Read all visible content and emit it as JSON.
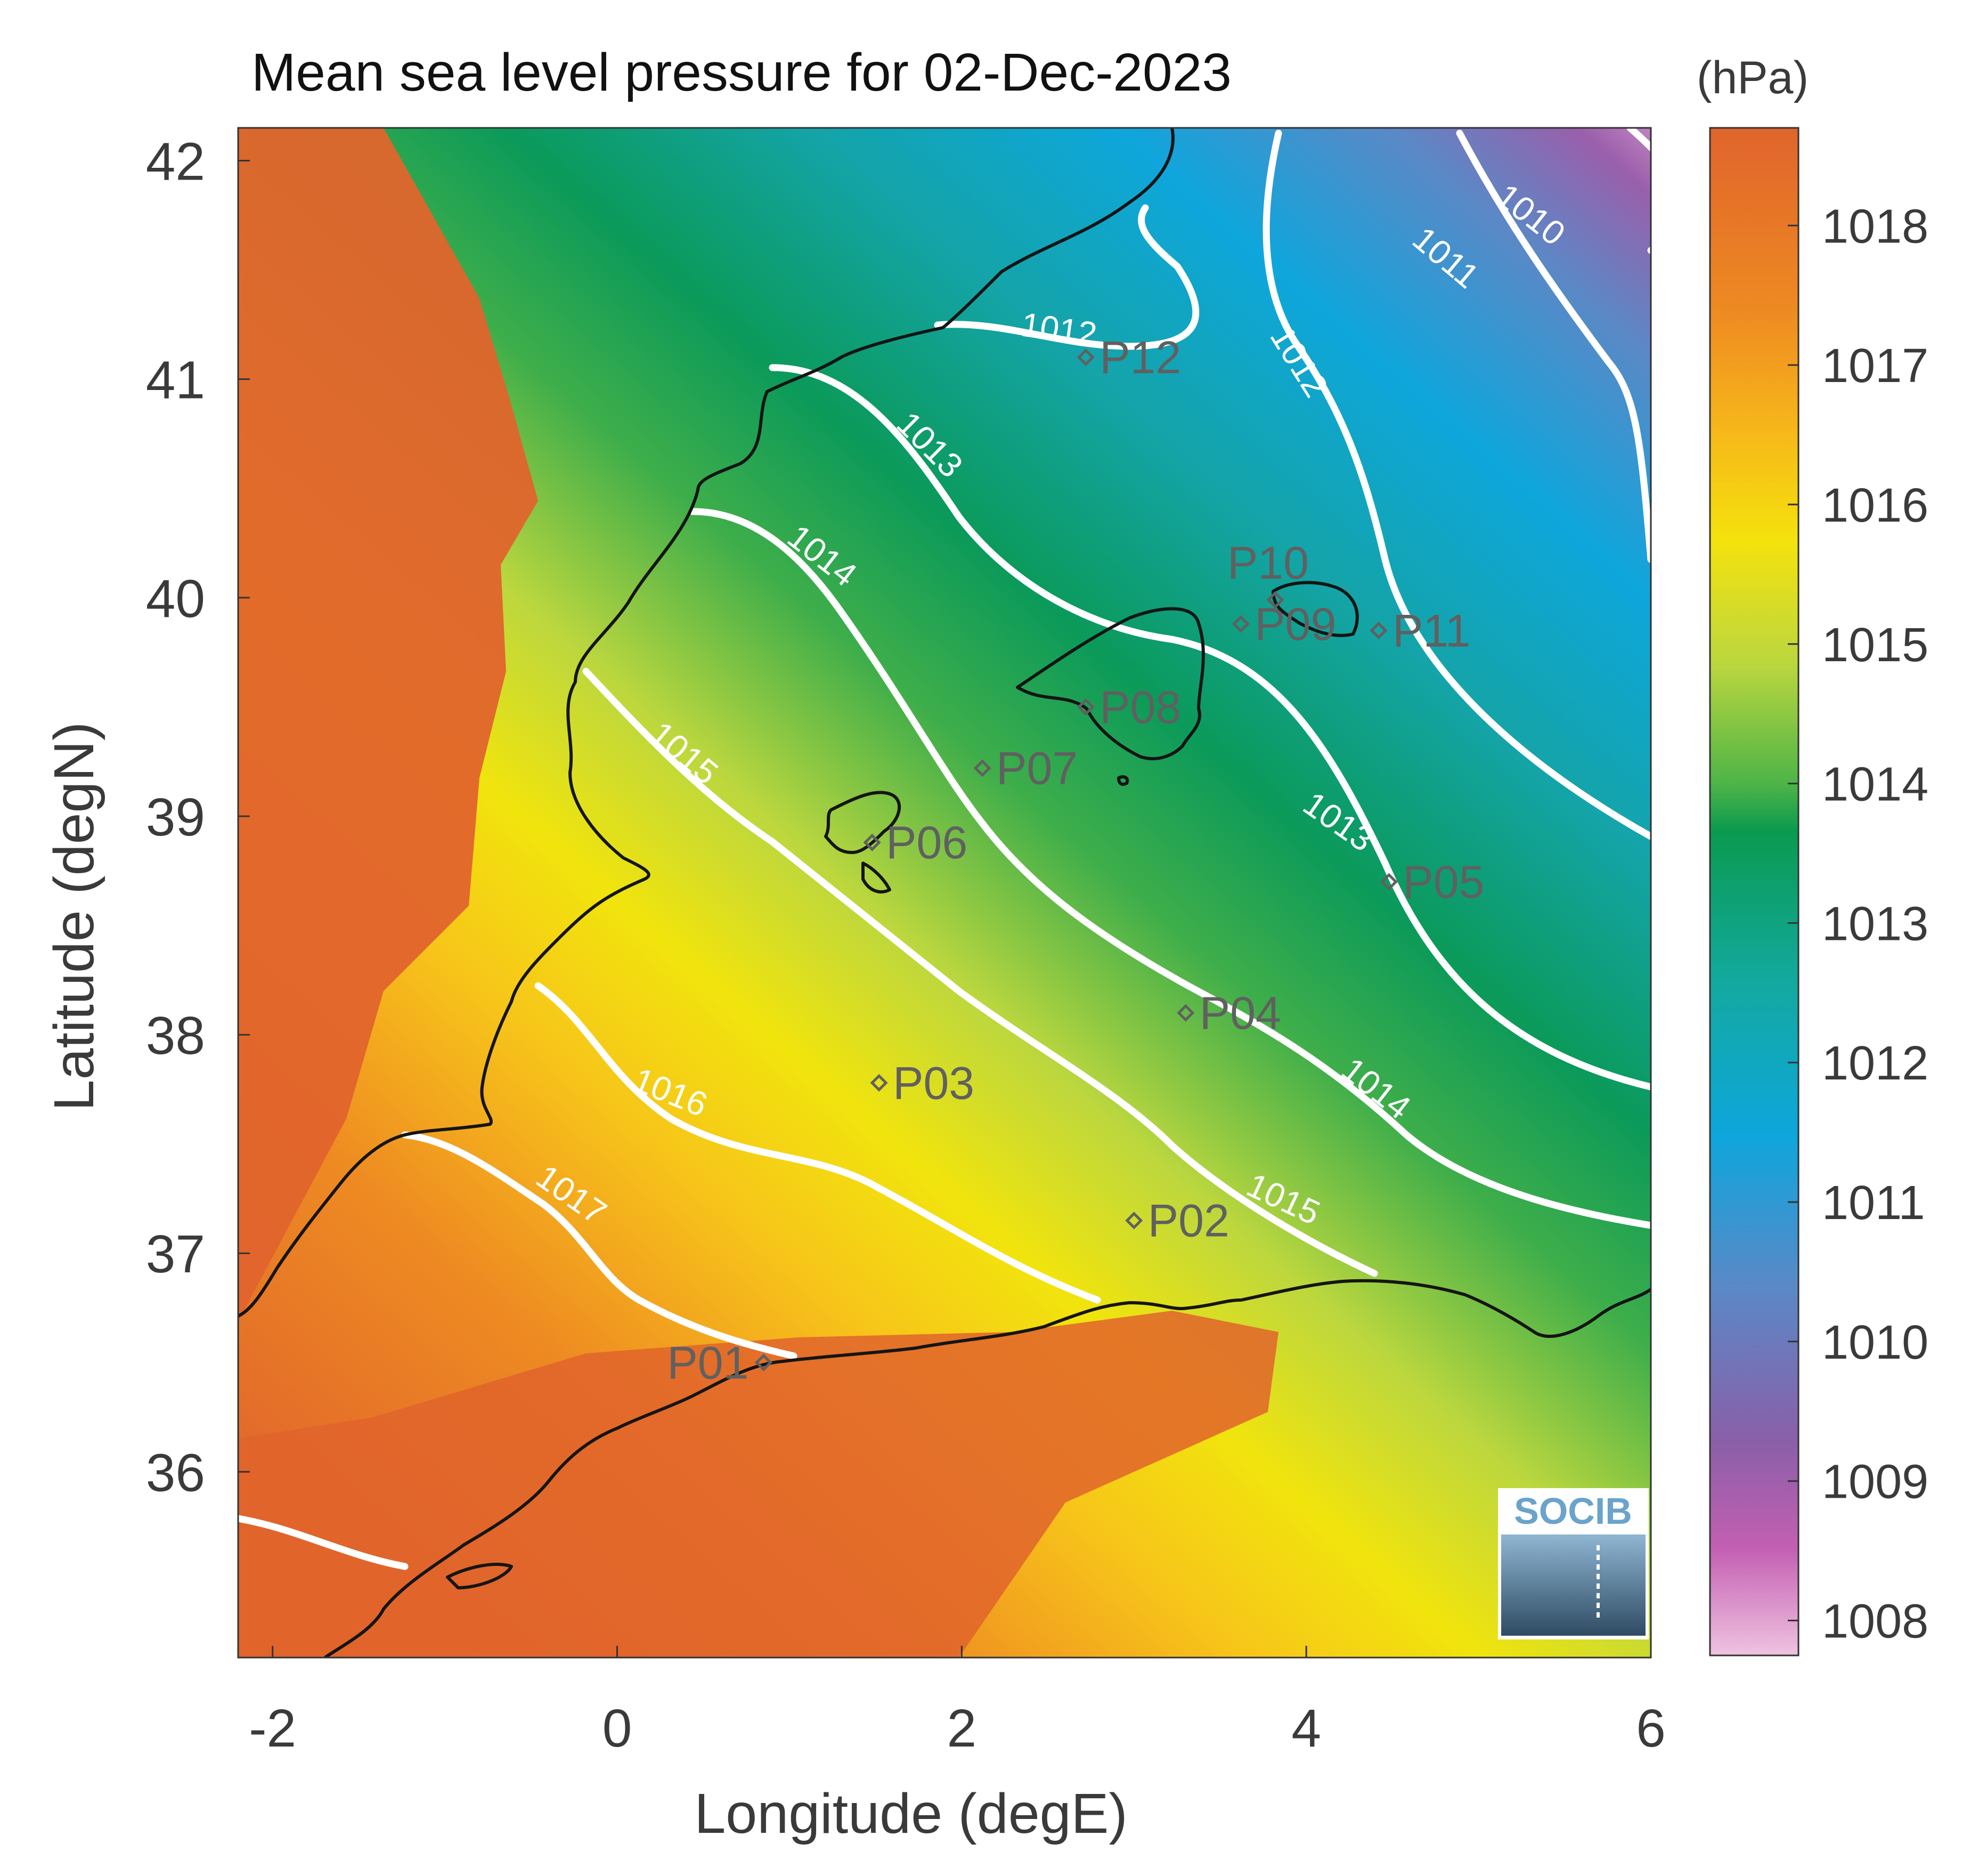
{
  "title": "Mean sea level pressure for 02-Dec-2023",
  "colorbar": {
    "unit_label": "(hPa)",
    "range": [
      1007.75,
      1018.7
    ],
    "ticks": [
      "1018",
      "1017",
      "1016",
      "1015",
      "1014",
      "1013",
      "1012",
      "1011",
      "1010",
      "1009",
      "1008"
    ],
    "colors": [
      "#ec7a2c",
      "#f7a51c",
      "#f4e20d",
      "#bcd73e",
      "#4db448",
      "#0b9a4f",
      "#13a9a0",
      "#0ea6dc",
      "#5b88c6",
      "#8a5fa8",
      "#c45fb2",
      "#efc3e1"
    ]
  },
  "axes": {
    "xlabel": "Longitude (degE)",
    "ylabel": "Latitude (degN)",
    "xlim": [
      -2.2,
      6.0
    ],
    "ylim": [
      35.15,
      42.15
    ],
    "xticks": [
      "-2",
      "0",
      "2",
      "4",
      "6"
    ],
    "yticks": [
      "36",
      "37",
      "38",
      "39",
      "40",
      "41",
      "42"
    ]
  },
  "contour_labels": [
    "1010",
    "1011",
    "1012",
    "1012",
    "1013",
    "1013",
    "1014",
    "1014",
    "1015",
    "1015",
    "1016",
    "1017"
  ],
  "stations": [
    {
      "name": "P01",
      "lon": 0.85,
      "lat": 36.5
    },
    {
      "name": "P02",
      "lon": 3.0,
      "lat": 37.15
    },
    {
      "name": "P03",
      "lon": 1.52,
      "lat": 37.78
    },
    {
      "name": "P04",
      "lon": 3.3,
      "lat": 38.1
    },
    {
      "name": "P05",
      "lon": 4.48,
      "lat": 38.7
    },
    {
      "name": "P06",
      "lon": 1.48,
      "lat": 38.88
    },
    {
      "name": "P07",
      "lon": 2.12,
      "lat": 39.22
    },
    {
      "name": "P08",
      "lon": 2.72,
      "lat": 39.5
    },
    {
      "name": "P09",
      "lon": 3.62,
      "lat": 39.88
    },
    {
      "name": "P10",
      "lon": 3.82,
      "lat": 39.99
    },
    {
      "name": "P11",
      "lon": 4.42,
      "lat": 39.85
    },
    {
      "name": "P12",
      "lon": 2.72,
      "lat": 41.1
    }
  ],
  "logo": {
    "text": "SOCIB"
  },
  "chart_data": {
    "type": "heatmap",
    "title": "Mean sea level pressure for 02-Dec-2023",
    "xlabel": "Longitude (degE)",
    "ylabel": "Latitude (degN)",
    "xlim": [
      -2.2,
      6.0
    ],
    "ylim": [
      35.15,
      42.15
    ],
    "colorbar_label": "(hPa)",
    "colorbar_range": [
      1007.75,
      1018.7
    ],
    "contour_levels": [
      1010,
      1011,
      1012,
      1013,
      1014,
      1015,
      1016,
      1017
    ],
    "grid": false
  }
}
